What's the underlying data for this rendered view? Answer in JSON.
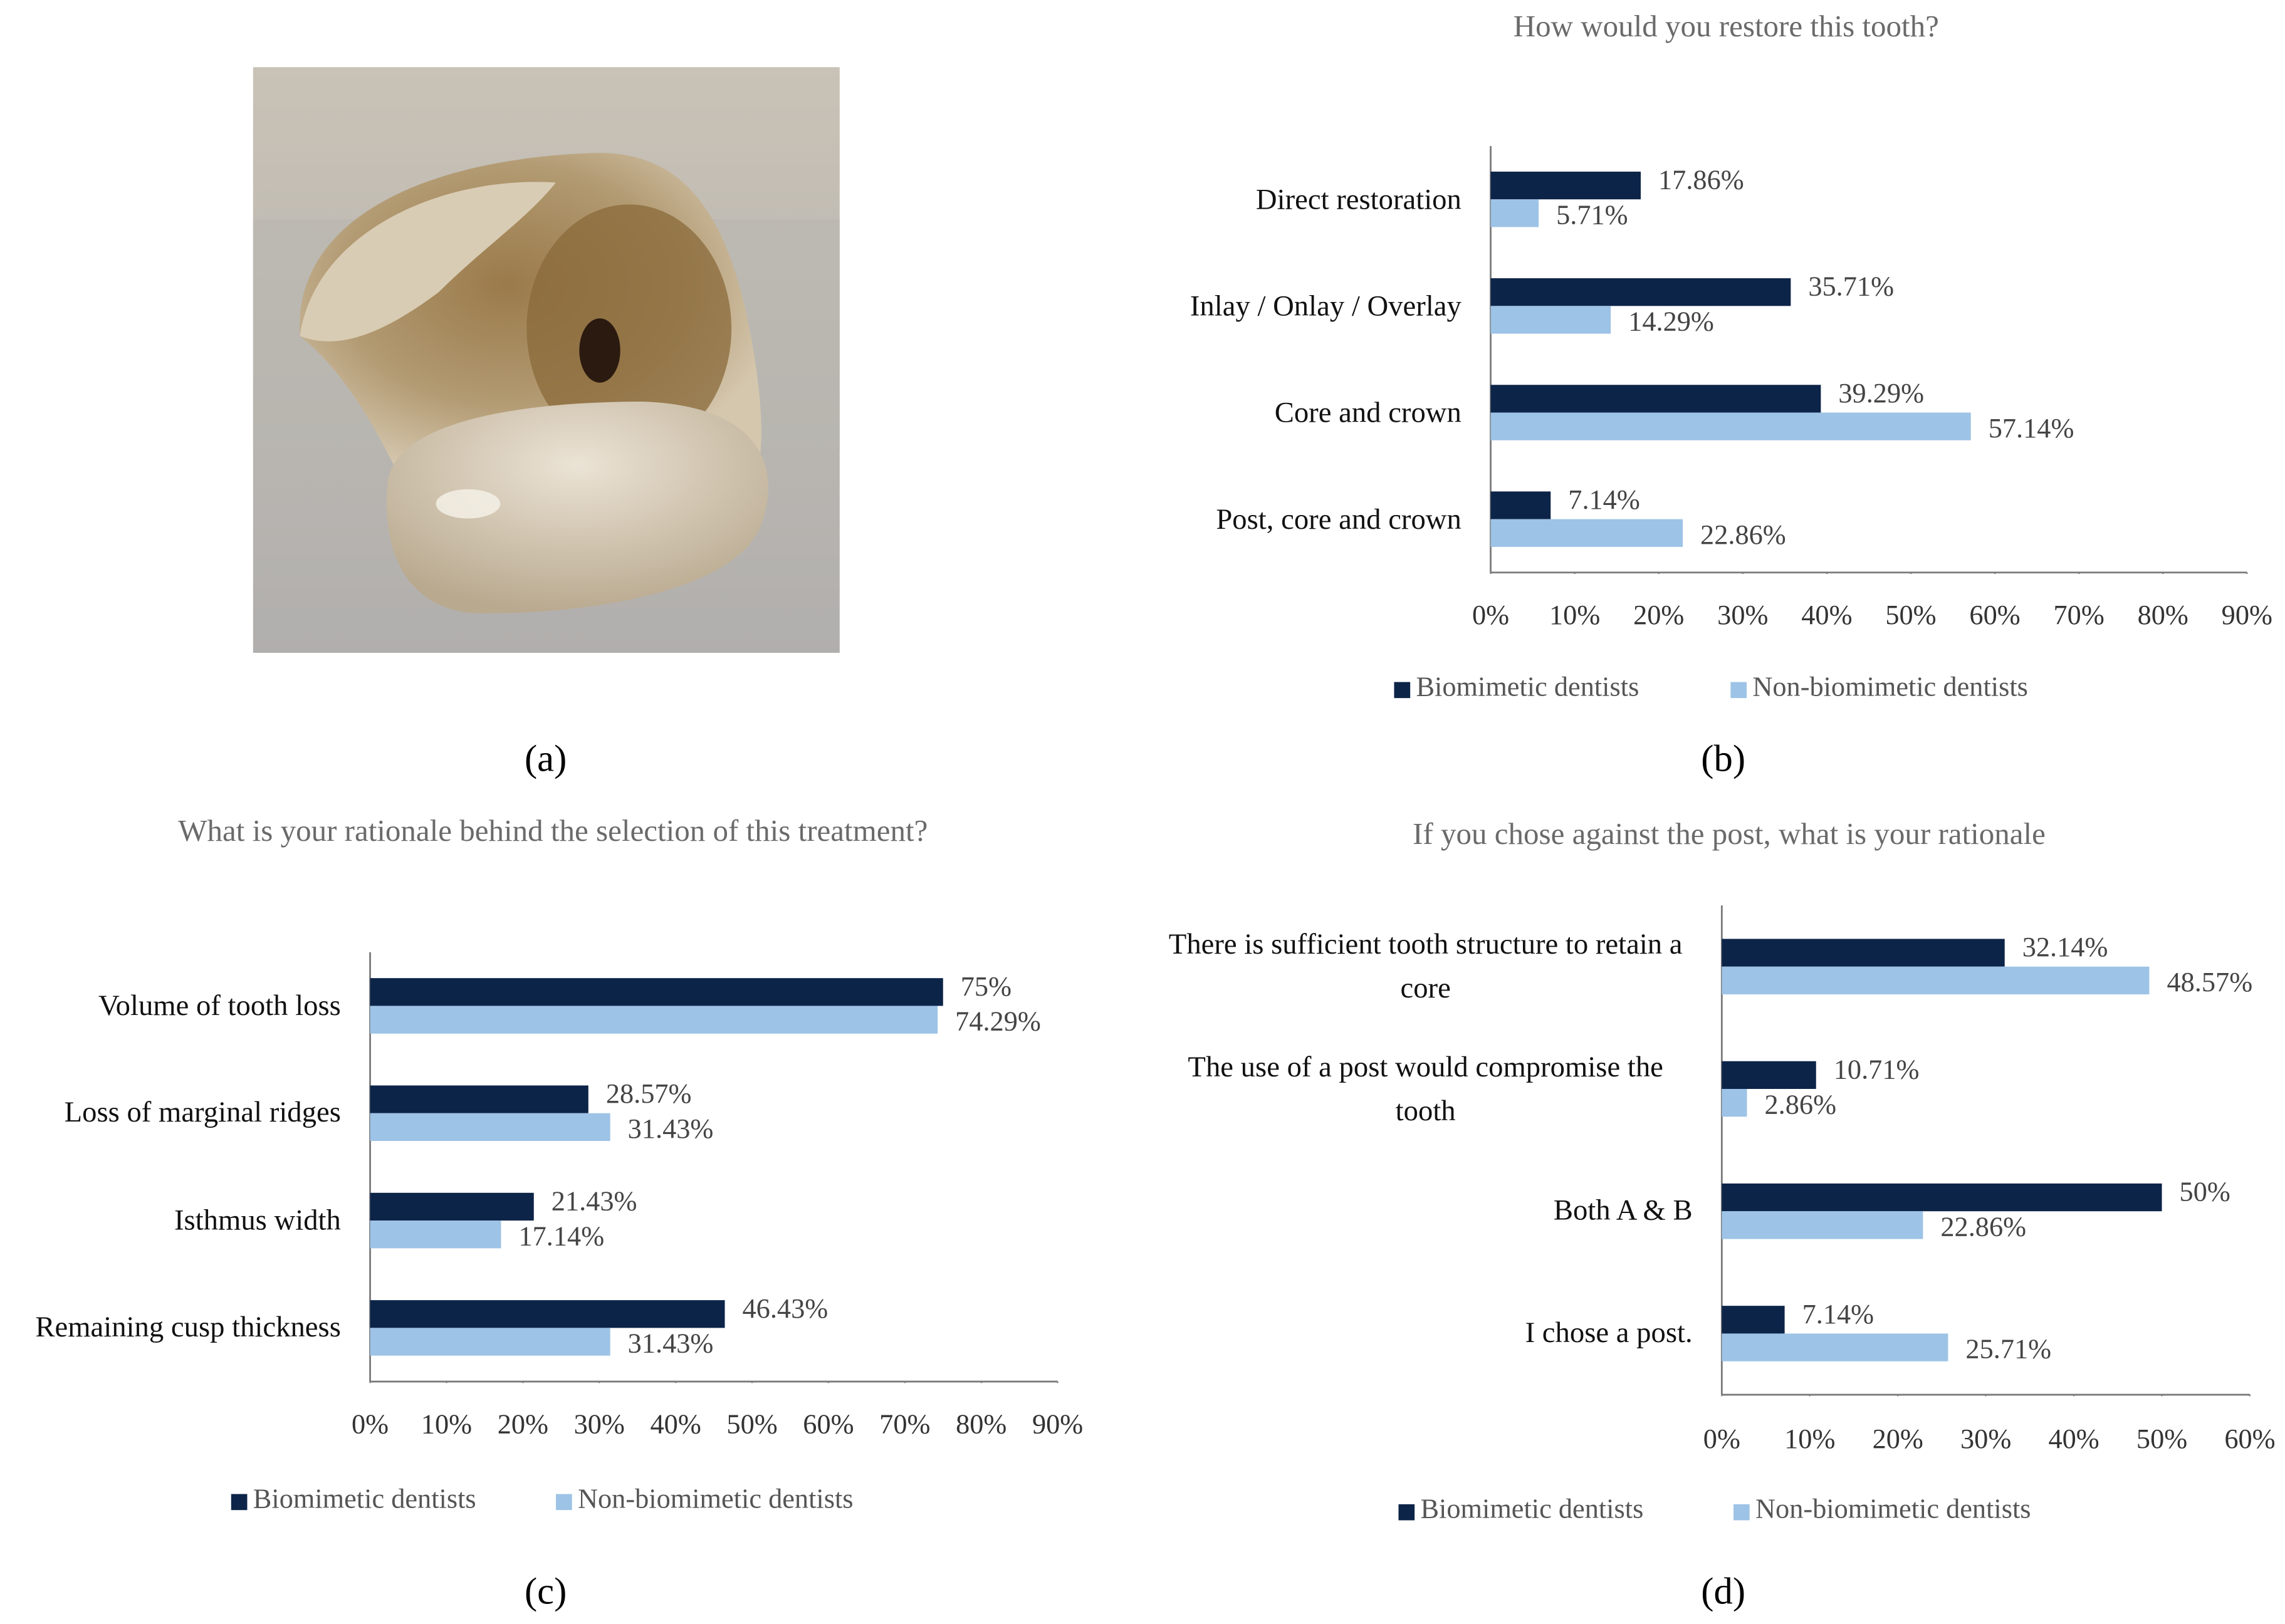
{
  "panel_labels": [
    "(a)",
    "(b)",
    "(c)",
    "(d)"
  ],
  "chart_data": [
    {
      "type": "bar",
      "orientation": "horizontal",
      "title": "How would you restore this tooth?",
      "categories": [
        "Direct restoration",
        "Inlay / Onlay / Overlay",
        "Core and crown",
        "Post, core and crown"
      ],
      "series": [
        {
          "name": "Biomimetic dentists",
          "color": "#0d2449",
          "values": [
            17.86,
            35.71,
            39.29,
            7.14
          ],
          "value_labels": [
            "17.86%",
            "35.71%",
            "39.29%",
            "7.14%"
          ]
        },
        {
          "name": "Non-biomimetic dentists",
          "color": "#9dc3e6",
          "values": [
            5.71,
            14.29,
            57.14,
            22.86
          ],
          "value_labels": [
            "5.71%",
            "14.29%",
            "57.14%",
            "22.86%"
          ]
        }
      ],
      "xlim": [
        0,
        90
      ],
      "xticks": [
        {
          "value": 0,
          "label": "0%"
        },
        {
          "value": 10,
          "label": "10%"
        },
        {
          "value": 20,
          "label": "20%"
        },
        {
          "value": 30,
          "label": "30%"
        },
        {
          "value": 40,
          "label": "40%"
        },
        {
          "value": 50,
          "label": "50%"
        },
        {
          "value": 60,
          "label": "60%"
        },
        {
          "value": 70,
          "label": "70%"
        },
        {
          "value": 80,
          "label": "80%"
        },
        {
          "value": 90,
          "label": "90%"
        }
      ],
      "grid": false,
      "legend": "bottom"
    },
    {
      "type": "bar",
      "orientation": "horizontal",
      "title": "What is your rationale behind the selection of this treatment?",
      "categories": [
        "Volume of tooth loss",
        "Loss of marginal ridges",
        "Isthmus width",
        "Remaining cusp thickness"
      ],
      "series": [
        {
          "name": "Biomimetic dentists",
          "color": "#0d2449",
          "values": [
            75,
            28.57,
            21.43,
            46.43
          ],
          "value_labels": [
            "75%",
            "28.57%",
            "21.43%",
            "46.43%"
          ]
        },
        {
          "name": "Non-biomimetic dentists",
          "color": "#9dc3e6",
          "values": [
            74.29,
            31.43,
            17.14,
            31.43
          ],
          "value_labels": [
            "74.29%",
            "31.43%",
            "17.14%",
            "31.43%"
          ]
        }
      ],
      "xlim": [
        0,
        90
      ],
      "xticks": [
        {
          "value": 0,
          "label": "0%"
        },
        {
          "value": 10,
          "label": "10%"
        },
        {
          "value": 20,
          "label": "20%"
        },
        {
          "value": 30,
          "label": "30%"
        },
        {
          "value": 40,
          "label": "40%"
        },
        {
          "value": 50,
          "label": "50%"
        },
        {
          "value": 60,
          "label": "60%"
        },
        {
          "value": 70,
          "label": "70%"
        },
        {
          "value": 80,
          "label": "80%"
        },
        {
          "value": 90,
          "label": "90%"
        }
      ],
      "grid": false,
      "legend": "bottom"
    },
    {
      "type": "bar",
      "orientation": "horizontal",
      "title": "If you chose against the post, what is your rationale",
      "categories": [
        "There is sufficient tooth structure to retain a core",
        "The use of a post would compromise the tooth",
        "Both A & B",
        "I chose a post."
      ],
      "series": [
        {
          "name": "Biomimetic dentists",
          "color": "#0d2449",
          "values": [
            32.14,
            10.71,
            50,
            7.14
          ],
          "value_labels": [
            "32.14%",
            "10.71%",
            "50%",
            "7.14%"
          ]
        },
        {
          "name": "Non-biomimetic dentists",
          "color": "#9dc3e6",
          "values": [
            48.57,
            2.86,
            22.86,
            25.71
          ],
          "value_labels": [
            "48.57%",
            "2.86%",
            "22.86%",
            "25.71%"
          ]
        }
      ],
      "xlim": [
        0,
        60
      ],
      "xticks": [
        {
          "value": 0,
          "label": "0%"
        },
        {
          "value": 10,
          "label": "10%"
        },
        {
          "value": 20,
          "label": "20%"
        },
        {
          "value": 30,
          "label": "30%"
        },
        {
          "value": 40,
          "label": "40%"
        },
        {
          "value": 50,
          "label": "50%"
        },
        {
          "value": 60,
          "label": "60%"
        }
      ],
      "grid": false,
      "legend": "bottom"
    }
  ]
}
